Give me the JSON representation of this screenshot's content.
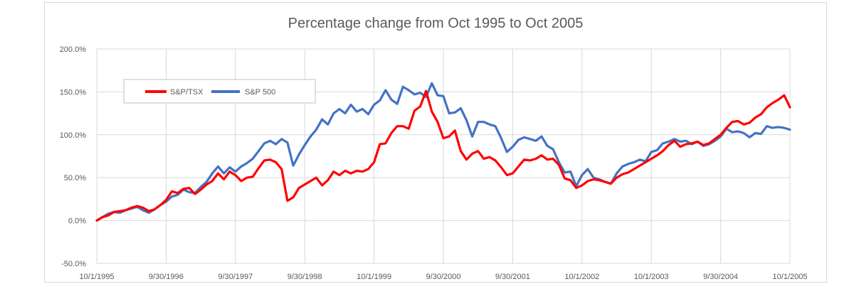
{
  "chart_data": {
    "type": "line",
    "title": "Percentage change from Oct 1995 to Oct 2005",
    "xlabel": "",
    "ylabel": "",
    "ylim": [
      -0.5,
      2.0
    ],
    "y_ticks": [
      "-50.0%",
      "0.0%",
      "50.0%",
      "100.0%",
      "150.0%",
      "200.0%"
    ],
    "x_ticks": [
      "10/1/1995",
      "9/30/1996",
      "9/30/1997",
      "9/30/1998",
      "10/1/1999",
      "9/30/2000",
      "9/30/2001",
      "10/1/2002",
      "10/1/2003",
      "9/30/2004",
      "10/1/2005"
    ],
    "grid": true,
    "legend_position": "upper-left",
    "x_dates": [
      "1995-10",
      "1995-11",
      "1995-12",
      "1996-01",
      "1996-02",
      "1996-03",
      "1996-04",
      "1996-05",
      "1996-06",
      "1996-07",
      "1996-08",
      "1996-09",
      "1996-10",
      "1996-11",
      "1996-12",
      "1997-01",
      "1997-02",
      "1997-03",
      "1997-04",
      "1997-05",
      "1997-06",
      "1997-07",
      "1997-08",
      "1997-09",
      "1997-10",
      "1997-11",
      "1997-12",
      "1998-01",
      "1998-02",
      "1998-03",
      "1998-04",
      "1998-05",
      "1998-06",
      "1998-07",
      "1998-08",
      "1998-09",
      "1998-10",
      "1998-11",
      "1998-12",
      "1999-01",
      "1999-02",
      "1999-03",
      "1999-04",
      "1999-05",
      "1999-06",
      "1999-07",
      "1999-08",
      "1999-09",
      "1999-10",
      "1999-11",
      "1999-12",
      "2000-01",
      "2000-02",
      "2000-03",
      "2000-04",
      "2000-05",
      "2000-06",
      "2000-07",
      "2000-08",
      "2000-09",
      "2000-10",
      "2000-11",
      "2000-12",
      "2001-01",
      "2001-02",
      "2001-03",
      "2001-04",
      "2001-05",
      "2001-06",
      "2001-07",
      "2001-08",
      "2001-09",
      "2001-10",
      "2001-11",
      "2001-12",
      "2002-01",
      "2002-02",
      "2002-03",
      "2002-04",
      "2002-05",
      "2002-06",
      "2002-07",
      "2002-08",
      "2002-09",
      "2002-10",
      "2002-11",
      "2002-12",
      "2003-01",
      "2003-02",
      "2003-03",
      "2003-04",
      "2003-05",
      "2003-06",
      "2003-07",
      "2003-08",
      "2003-09",
      "2003-10",
      "2003-11",
      "2003-12",
      "2004-01",
      "2004-02",
      "2004-03",
      "2004-04",
      "2004-05",
      "2004-06",
      "2004-07",
      "2004-08",
      "2004-09",
      "2004-10",
      "2004-11",
      "2004-12",
      "2005-01",
      "2005-02",
      "2005-03",
      "2005-04",
      "2005-05",
      "2005-06",
      "2005-07",
      "2005-08",
      "2005-09",
      "2005-10"
    ],
    "series": [
      {
        "name": "S&P/TSX",
        "color": "#ff0000",
        "values": [
          0.0,
          0.04,
          0.06,
          0.1,
          0.11,
          0.12,
          0.15,
          0.17,
          0.15,
          0.11,
          0.13,
          0.18,
          0.24,
          0.34,
          0.32,
          0.37,
          0.38,
          0.31,
          0.36,
          0.42,
          0.46,
          0.55,
          0.48,
          0.57,
          0.53,
          0.46,
          0.5,
          0.51,
          0.61,
          0.7,
          0.71,
          0.68,
          0.6,
          0.23,
          0.27,
          0.38,
          0.42,
          0.46,
          0.5,
          0.41,
          0.47,
          0.57,
          0.53,
          0.58,
          0.55,
          0.58,
          0.57,
          0.6,
          0.68,
          0.89,
          0.9,
          1.02,
          1.1,
          1.1,
          1.07,
          1.28,
          1.33,
          1.51,
          1.27,
          1.15,
          0.96,
          0.98,
          1.05,
          0.81,
          0.71,
          0.78,
          0.81,
          0.72,
          0.74,
          0.7,
          0.62,
          0.53,
          0.55,
          0.63,
          0.71,
          0.7,
          0.72,
          0.76,
          0.71,
          0.72,
          0.65,
          0.49,
          0.47,
          0.38,
          0.41,
          0.46,
          0.48,
          0.47,
          0.45,
          0.43,
          0.5,
          0.54,
          0.56,
          0.6,
          0.64,
          0.68,
          0.72,
          0.76,
          0.81,
          0.88,
          0.93,
          0.86,
          0.89,
          0.9,
          0.92,
          0.88,
          0.9,
          0.95,
          1.0,
          1.08,
          1.15,
          1.16,
          1.12,
          1.14,
          1.2,
          1.24,
          1.32,
          1.37,
          1.41,
          1.46,
          1.32
        ]
      },
      {
        "name": "S&P 500",
        "color": "#4472c4",
        "values": [
          0.0,
          0.04,
          0.08,
          0.1,
          0.09,
          0.12,
          0.14,
          0.16,
          0.12,
          0.09,
          0.13,
          0.18,
          0.22,
          0.28,
          0.3,
          0.36,
          0.33,
          0.32,
          0.39,
          0.45,
          0.55,
          0.63,
          0.55,
          0.62,
          0.57,
          0.63,
          0.67,
          0.72,
          0.81,
          0.9,
          0.93,
          0.89,
          0.95,
          0.91,
          0.64,
          0.77,
          0.88,
          0.98,
          1.06,
          1.18,
          1.12,
          1.25,
          1.3,
          1.25,
          1.35,
          1.27,
          1.3,
          1.24,
          1.35,
          1.4,
          1.52,
          1.41,
          1.36,
          1.56,
          1.52,
          1.47,
          1.49,
          1.44,
          1.6,
          1.46,
          1.45,
          1.25,
          1.26,
          1.31,
          1.17,
          0.98,
          1.15,
          1.15,
          1.12,
          1.1,
          0.96,
          0.8,
          0.86,
          0.94,
          0.97,
          0.95,
          0.93,
          0.98,
          0.87,
          0.83,
          0.68,
          0.56,
          0.57,
          0.4,
          0.53,
          0.6,
          0.5,
          0.48,
          0.45,
          0.43,
          0.55,
          0.63,
          0.66,
          0.68,
          0.71,
          0.69,
          0.8,
          0.82,
          0.9,
          0.92,
          0.95,
          0.92,
          0.93,
          0.89,
          0.92,
          0.87,
          0.89,
          0.93,
          0.98,
          1.07,
          1.03,
          1.04,
          1.02,
          0.97,
          1.02,
          1.01,
          1.1,
          1.08,
          1.09,
          1.08,
          1.06
        ]
      }
    ]
  }
}
